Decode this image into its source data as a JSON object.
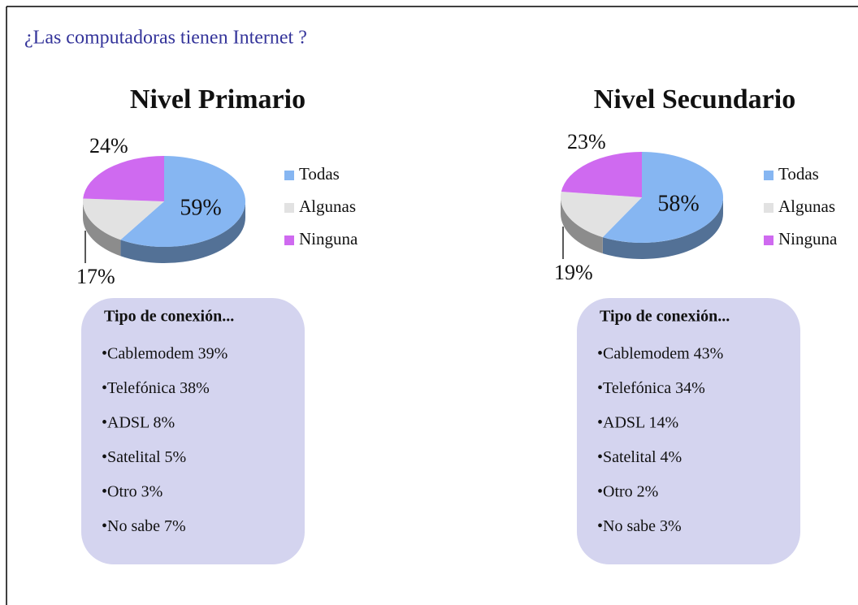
{
  "title": "¿Las computadoras tienen Internet ?",
  "chart_data": [
    {
      "type": "pie",
      "title": "Nivel Primario",
      "categories": [
        "Todas",
        "Algunas",
        "Ninguna"
      ],
      "values": [
        59,
        17,
        24
      ],
      "value_labels": [
        "59%",
        "17%",
        "24%"
      ],
      "colors": [
        "#86b6f2",
        "#e2e2e2",
        "#cf6af0"
      ]
    },
    {
      "type": "pie",
      "title": "Nivel Secundario",
      "categories": [
        "Todas",
        "Algunas",
        "Ninguna"
      ],
      "values": [
        58,
        19,
        23
      ],
      "value_labels": [
        "58%",
        "19%",
        "23%"
      ],
      "colors": [
        "#86b6f2",
        "#e2e2e2",
        "#cf6af0"
      ]
    }
  ],
  "boxes": [
    {
      "title": "Tipo de conexión...",
      "items": [
        "•Cablemodem 39%",
        "•Telefónica 38%",
        "•ADSL 8%",
        "•Satelital 5%",
        "•Otro 3%",
        "•No sabe 7%"
      ]
    },
    {
      "title": "Tipo de conexión...",
      "items": [
        "•Cablemodem 43%",
        "•Telefónica 34%",
        "•ADSL 14%",
        "•Satelital 4%",
        "•Otro 2%",
        "•No sabe 3%"
      ]
    }
  ]
}
